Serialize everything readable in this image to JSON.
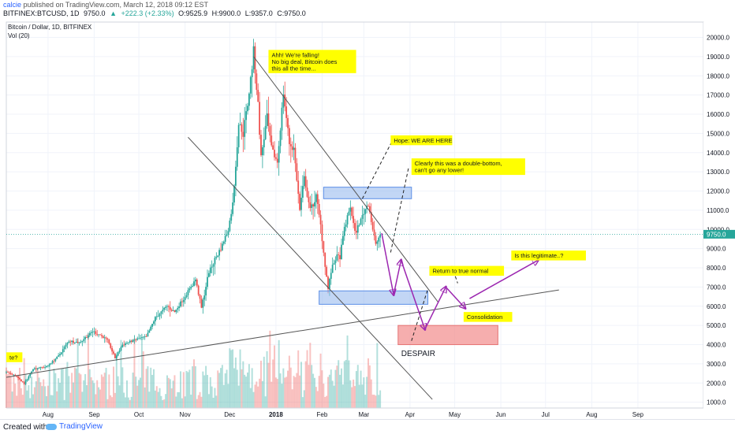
{
  "header": {
    "user": "calcie",
    "published": "published on TradingView.com, March 12, 2018 09:12 EST",
    "symbol": "BITFINEX:BTCUSD, 1D",
    "last": "9750.0",
    "change": "+222.3 (+2.33%)",
    "open": "O:9525.9",
    "high": "H:9900.0",
    "low": "L:9357.0",
    "close": "C:9750.0"
  },
  "chart_data": {
    "type": "candlestick",
    "title": "Bitcoin / Dollar, 1D, BITFINEX",
    "volume_label": "Vol (20)",
    "y_ticks": [
      1000,
      2000,
      3000,
      4000,
      5000,
      6000,
      7000,
      8000,
      9000,
      10000,
      11000,
      12000,
      13000,
      14000,
      15000,
      16000,
      17000,
      18000,
      19000,
      20000
    ],
    "y_tick_labels": [
      "1000.0",
      "2000.0",
      "3000.0",
      "4000.0",
      "5000.0",
      "6000.0",
      "7000.0",
      "8000.0",
      "9000.0",
      "10000.0",
      "11000.0",
      "12000.0",
      "13000.0",
      "14000.0",
      "15000.0",
      "16000.0",
      "17000.0",
      "18000.0",
      "19000.0",
      "20000.0"
    ],
    "ylim": [
      700,
      20800
    ],
    "x_ticks": [
      {
        "label": "Aug",
        "date": "2017-08-01"
      },
      {
        "label": "Sep",
        "date": "2017-09-01"
      },
      {
        "label": "Oct",
        "date": "2017-10-01"
      },
      {
        "label": "Nov",
        "date": "2017-11-01"
      },
      {
        "label": "Dec",
        "date": "2017-12-01"
      },
      {
        "label": "2018",
        "date": "2018-01-01"
      },
      {
        "label": "Feb",
        "date": "2018-02-01"
      },
      {
        "label": "Mar",
        "date": "2018-03-01"
      },
      {
        "label": "Apr",
        "date": "2018-04-01"
      },
      {
        "label": "May",
        "date": "2018-05-01"
      },
      {
        "label": "Jun",
        "date": "2018-06-01"
      },
      {
        "label": "Jul",
        "date": "2018-07-01"
      },
      {
        "label": "Aug",
        "date": "2018-08-01"
      },
      {
        "label": "Sep",
        "date": "2018-09-01"
      }
    ],
    "xlim": [
      "2017-07-04",
      "2018-10-15"
    ],
    "last_price": 9750,
    "last_price_label": "9750.0",
    "price_path": [
      [
        "2017-07-04",
        2550
      ],
      [
        "2017-07-10",
        2400
      ],
      [
        "2017-07-16",
        1950
      ],
      [
        "2017-07-22",
        2750
      ],
      [
        "2017-07-31",
        2850
      ],
      [
        "2017-08-08",
        3400
      ],
      [
        "2017-08-15",
        4200
      ],
      [
        "2017-08-22",
        4100
      ],
      [
        "2017-08-31",
        4700
      ],
      [
        "2017-09-05",
        4500
      ],
      [
        "2017-09-10",
        4200
      ],
      [
        "2017-09-15",
        3300
      ],
      [
        "2017-09-20",
        4000
      ],
      [
        "2017-09-30",
        4300
      ],
      [
        "2017-10-06",
        4400
      ],
      [
        "2017-10-12",
        5400
      ],
      [
        "2017-10-20",
        6000
      ],
      [
        "2017-10-25",
        5700
      ],
      [
        "2017-10-31",
        6400
      ],
      [
        "2017-11-08",
        7400
      ],
      [
        "2017-11-12",
        5900
      ],
      [
        "2017-11-17",
        7800
      ],
      [
        "2017-11-26",
        9200
      ],
      [
        "2017-11-30",
        10000
      ],
      [
        "2017-12-03",
        11300
      ],
      [
        "2017-12-07",
        15500
      ],
      [
        "2017-12-10",
        15000
      ],
      [
        "2017-12-13",
        16500
      ],
      [
        "2017-12-17",
        19200
      ],
      [
        "2017-12-20",
        16500
      ],
      [
        "2017-12-22",
        13800
      ],
      [
        "2017-12-26",
        15800
      ],
      [
        "2017-12-29",
        14200
      ],
      [
        "2018-01-02",
        13500
      ],
      [
        "2018-01-06",
        17100
      ],
      [
        "2018-01-10",
        14500
      ],
      [
        "2018-01-13",
        14200
      ],
      [
        "2018-01-17",
        11000
      ],
      [
        "2018-01-20",
        12700
      ],
      [
        "2018-01-24",
        11000
      ],
      [
        "2018-01-28",
        11700
      ],
      [
        "2018-01-31",
        10200
      ],
      [
        "2018-02-02",
        8800
      ],
      [
        "2018-02-05",
        6900
      ],
      [
        "2018-02-07",
        7800
      ],
      [
        "2018-02-10",
        8500
      ],
      [
        "2018-02-13",
        8600
      ],
      [
        "2018-02-16",
        10100
      ],
      [
        "2018-02-20",
        11200
      ],
      [
        "2018-02-23",
        9800
      ],
      [
        "2018-02-26",
        10300
      ],
      [
        "2018-03-01",
        10900
      ],
      [
        "2018-03-04",
        11400
      ],
      [
        "2018-03-07",
        10000
      ],
      [
        "2018-03-09",
        9200
      ],
      [
        "2018-03-12",
        9750
      ]
    ],
    "annotations": [
      {
        "text": "Ahh! We're falling!\nNo big deal, Bitcoin does\nthis all the time...",
        "date": "2017-12-27",
        "price": 19350
      },
      {
        "text": "Hope: WE ARE HERE",
        "date": "2018-03-19",
        "price": 14900
      },
      {
        "text": "Clearly this was a double-bottom,\ncan't go any lower!",
        "date": "2018-04-02",
        "price": 13700
      },
      {
        "text": "Is this legitimate..?",
        "date": "2018-06-08",
        "price": 8900
      },
      {
        "text": "Return to true normal",
        "date": "2018-04-14",
        "price": 8100
      },
      {
        "text": "Consolidation",
        "date": "2018-05-07",
        "price": 5700
      },
      {
        "text": "te?",
        "date": "2017-07-04",
        "price": 3600
      }
    ],
    "despair_label": "DESPAIR",
    "zones": [
      {
        "name": "resistance-box",
        "color": "blue",
        "from": "2018-02-02",
        "to": "2018-04-02",
        "high": 12200,
        "low": 11600
      },
      {
        "name": "support-box",
        "color": "blue",
        "from": "2018-01-30",
        "to": "2018-04-13",
        "high": 6800,
        "low": 6100
      },
      {
        "name": "despair-box",
        "color": "red",
        "from": "2018-03-24",
        "to": "2018-05-30",
        "high": 5000,
        "low": 4000
      }
    ],
    "trendlines": [
      {
        "name": "upper-channel",
        "from": [
          "2017-12-17",
          19000
        ],
        "to": [
          "2018-04-20",
          6200
        ]
      },
      {
        "name": "lower-channel",
        "from": [
          "2017-11-03",
          14800
        ],
        "to": [
          "2018-04-16",
          1150
        ]
      },
      {
        "name": "long-support",
        "from": [
          "2017-07-04",
          2300
        ],
        "to": [
          "2018-07-10",
          6850
        ]
      }
    ],
    "projection_path": [
      [
        "2018-03-13",
        9800
      ],
      [
        "2018-03-21",
        6600
      ],
      [
        "2018-03-26",
        8400
      ],
      [
        "2018-04-11",
        4800
      ],
      [
        "2018-04-25",
        7000
      ],
      [
        "2018-05-08",
        5900
      ]
    ],
    "projection_path_2": [
      [
        "2018-05-11",
        6400
      ],
      [
        "2018-06-26",
        8400
      ]
    ],
    "dashed_lines": [
      {
        "from": [
          "2018-02-28",
          11600
        ],
        "to": [
          "2018-03-20",
          14600
        ]
      },
      {
        "from": [
          "2018-03-19",
          8800
        ],
        "to": [
          "2018-03-31",
          13200
        ]
      },
      {
        "from": [
          "2018-04-02",
          4200
        ],
        "to": [
          "2018-04-13",
          6900
        ]
      },
      {
        "from": [
          "2018-04-29",
          8100
        ],
        "to": [
          "2018-05-03",
          7200
        ]
      }
    ],
    "colors": {
      "up": "#26a69a",
      "down": "#ef5350",
      "projection": "#9c27b0",
      "annotation_bg": "#ffff00",
      "blue_zone": "#90b4ec",
      "red_zone": "#f28b8b",
      "last_price_line": "#26a69a",
      "grid": "#f0f3fa"
    }
  },
  "footer": {
    "created": "Created with",
    "brand": "TradingView"
  }
}
